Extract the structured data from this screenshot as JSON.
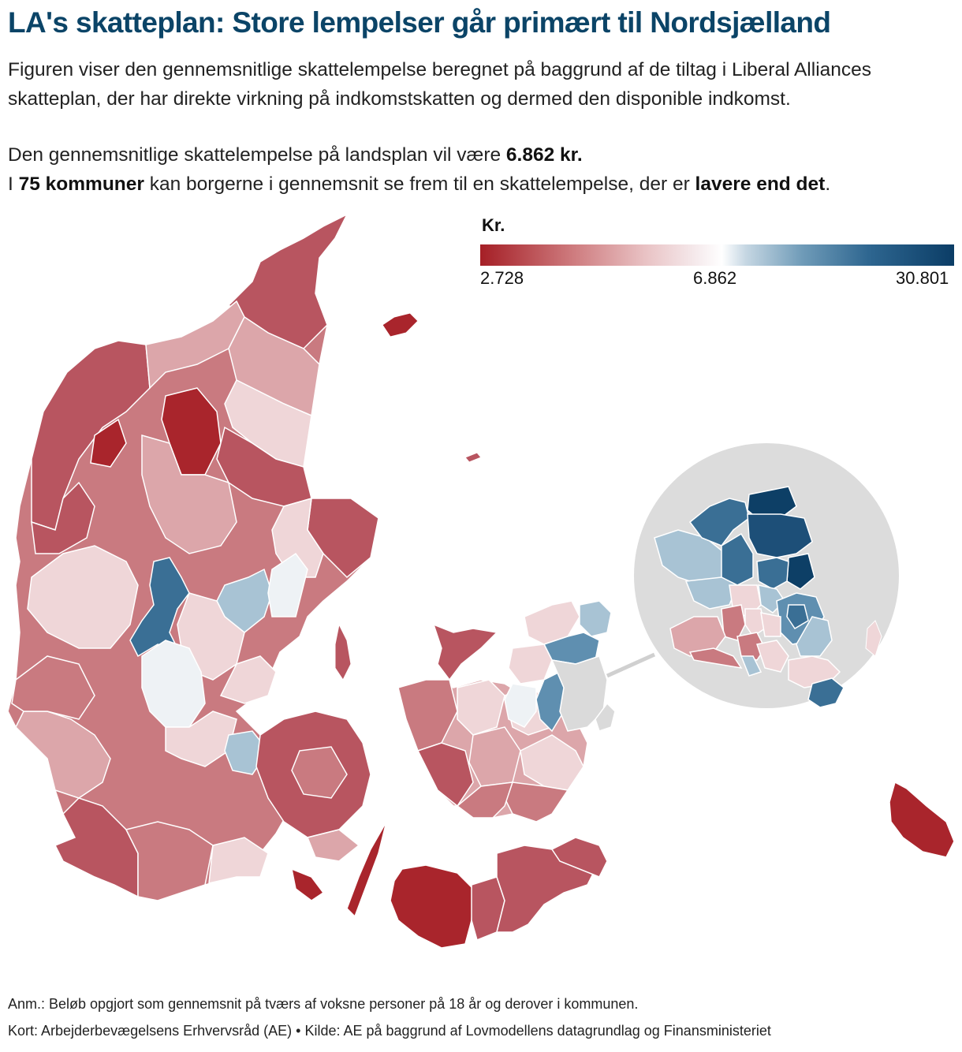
{
  "header": {
    "title": "LA's skatteplan: Store lempelser går primært til Nordsjælland",
    "subtitle": "Figuren viser den gennemsnitlige skattelempelse beregnet på baggrund af de tiltag i Liberal Alliances skatteplan, der har direkte virkning på indkomstskatten og dermed den disponible indkomst."
  },
  "stats": {
    "line1_prefix": "Den gennemsnitlige skattelempelse på landsplan vil være ",
    "line1_value": "6.862 kr.",
    "line2_prefix": "I ",
    "line2_count": "75 kommuner",
    "line2_middle": " kan borgerne i gennemsnit se frem til en skattelempelse, der er ",
    "line2_emphasis": "lavere end det",
    "line2_suffix": "."
  },
  "legend": {
    "title": "Kr.",
    "min_label": "2.728",
    "mid_label": "6.862",
    "max_label": "30.801",
    "min_value": 2728,
    "mid_value": 6862,
    "max_value": 30801,
    "colors": [
      "#a51f26",
      "#cf7d80",
      "#e9c3c5",
      "#f6ecee",
      "#ffffff",
      "#c6d7e3",
      "#6f9bb8",
      "#2e6690",
      "#0b3d66"
    ]
  },
  "map": {
    "colors": {
      "dark_red": "#a9252c",
      "red": "#b85560",
      "medium_red": "#c97a80",
      "light_red": "#dca6aa",
      "pale_red": "#efd6d8",
      "near_white": "#eef2f5",
      "light_blue": "#a8c3d4",
      "medium_blue": "#5f8fb0",
      "blue": "#3a6f95",
      "dark_blue": "#0d3f66",
      "inset_bg": "#dcdcdc",
      "no_data": "#dadada"
    }
  },
  "footer": {
    "note": "Anm.: Beløb opgjort som gennemsnit på tværs af voksne personer på 18 år og derover i kommunen.",
    "source": "Kort: Arbejderbevægelsens Erhvervsråd (AE) • Kilde: AE på baggrund af Lovmodellens datagrundlag og Finansministeriet"
  }
}
